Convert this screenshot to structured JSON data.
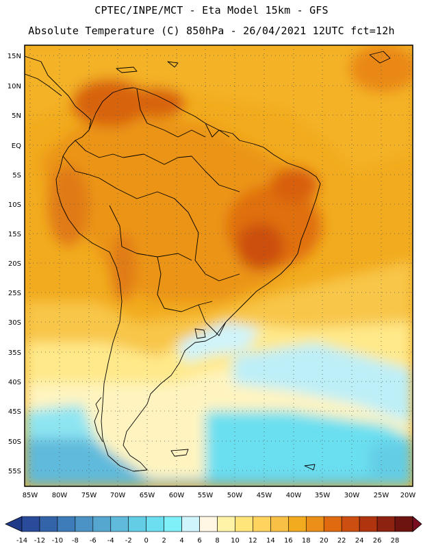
{
  "header": {
    "line1": "CPTEC/INPE/MCT  -   Eta Model 15km  - GFS",
    "line2": "Absolute Temperature (C) 850hPa  - 26/04/2021 12UTC fct=12h"
  },
  "map": {
    "lat_labels": [
      "15N",
      "10N",
      "5N",
      "EQ",
      "5S",
      "10S",
      "15S",
      "20S",
      "25S",
      "30S",
      "35S",
      "40S",
      "45S",
      "50S",
      "55S"
    ],
    "lon_labels": [
      "85W",
      "80W",
      "75W",
      "70W",
      "65W",
      "60W",
      "55W",
      "50W",
      "45W",
      "40W",
      "35W",
      "30W",
      "25W",
      "20W"
    ]
  },
  "colorbar": {
    "tick_labels": [
      "-14",
      "-12",
      "-10",
      "-8",
      "-6",
      "-4",
      "-2",
      "0",
      "2",
      "4",
      "6",
      "8",
      "10",
      "12",
      "14",
      "16",
      "18",
      "20",
      "22",
      "24",
      "26",
      "28"
    ],
    "colors": [
      "#2a4a9a",
      "#3363a8",
      "#3d7cb8",
      "#4a93c4",
      "#56a7cf",
      "#5fbadb",
      "#63cde6",
      "#6bdff0",
      "#7ff0f8",
      "#cff4fb",
      "#fff6e4",
      "#fff3a8",
      "#ffe57a",
      "#ffd35e",
      "#f8c044",
      "#f2ab1e",
      "#eb8f18",
      "#e06a10",
      "#cc4e10",
      "#b0340e",
      "#8e2210",
      "#6e1410"
    ],
    "end_left": "#1f3a88",
    "end_right": "#7a0e20"
  }
}
